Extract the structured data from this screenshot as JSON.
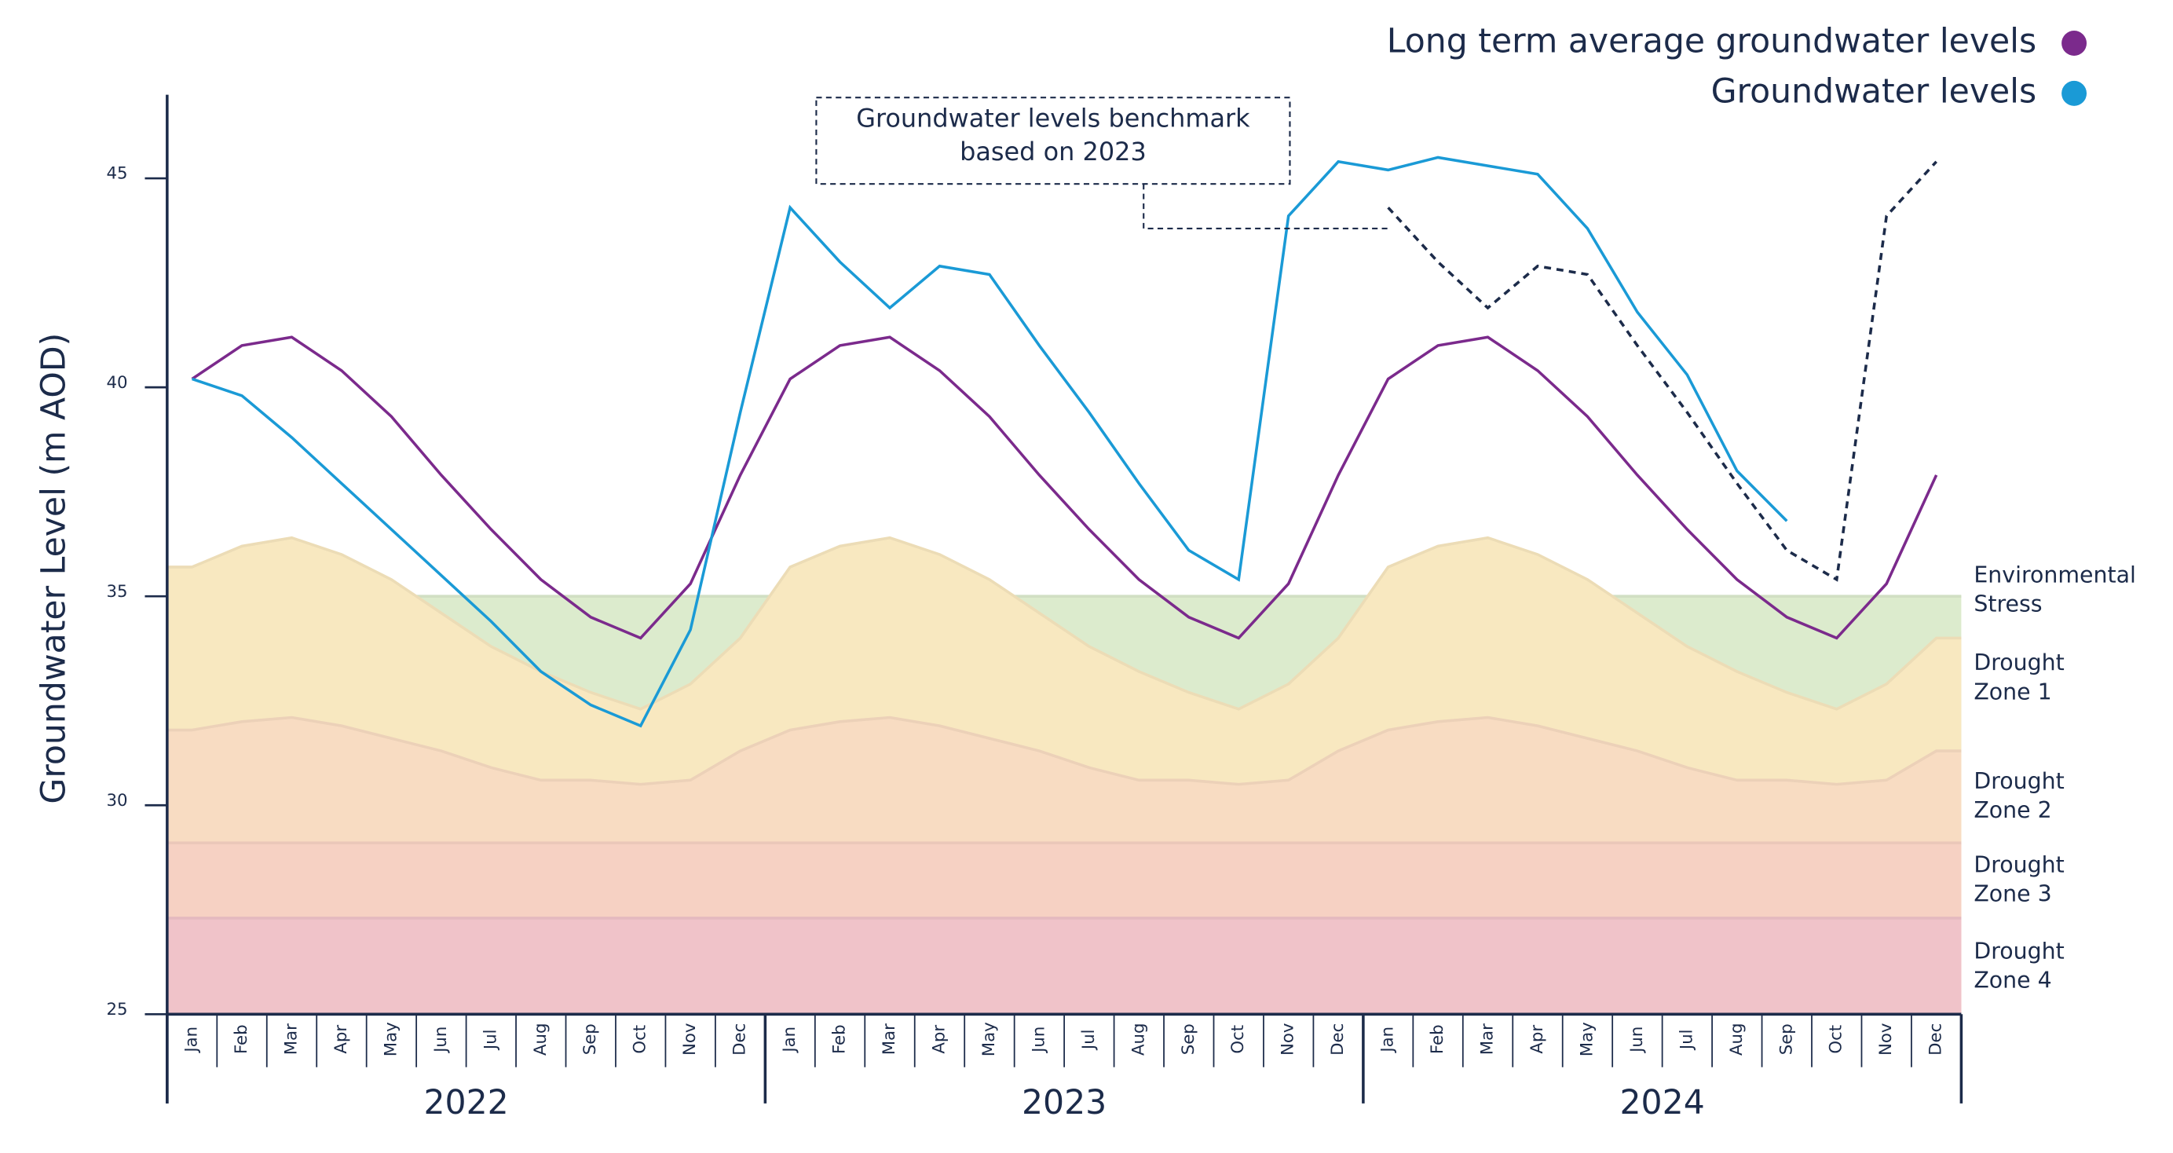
{
  "chart_data": {
    "type": "line",
    "y_label": "Groundwater Level (m AOD)",
    "categories": [
      "Jan",
      "Feb",
      "Mar",
      "Apr",
      "May",
      "Jun",
      "Jul",
      "Aug",
      "Sep",
      "Oct",
      "Nov",
      "Dec",
      "Jan",
      "Feb",
      "Mar",
      "Apr",
      "May",
      "Jun",
      "Jul",
      "Aug",
      "Sep",
      "Oct",
      "Nov",
      "Dec",
      "Jan",
      "Feb",
      "Mar",
      "Apr",
      "May",
      "Jun",
      "Jul",
      "Aug",
      "Sep",
      "Oct",
      "Nov",
      "Dec"
    ],
    "year_labels": [
      "2022",
      "2023",
      "2024"
    ],
    "ylim": [
      25,
      47
    ],
    "yticks": [
      25,
      30,
      35,
      40,
      45
    ],
    "legend": "top-right",
    "series": [
      {
        "name": "Long term average groundwater levels",
        "color": "#7b2a8c",
        "values": [
          40.2,
          41.0,
          41.2,
          40.4,
          39.3,
          37.9,
          36.6,
          35.4,
          34.5,
          34.0,
          35.3,
          37.9,
          40.2,
          41.0,
          41.2,
          40.4,
          39.3,
          37.9,
          36.6,
          35.4,
          34.5,
          34.0,
          35.3,
          37.9,
          40.2,
          41.0,
          41.2,
          40.4,
          39.3,
          37.9,
          36.6,
          35.4,
          34.5,
          34.0,
          35.3,
          37.9
        ]
      },
      {
        "name": "Groundwater levels",
        "color": "#1a9ad6",
        "values": [
          40.2,
          39.8,
          38.8,
          37.7,
          36.6,
          35.5,
          34.4,
          33.2,
          32.4,
          31.9,
          34.2,
          39.4,
          44.3,
          43.0,
          41.9,
          42.9,
          42.7,
          41.0,
          39.4,
          37.7,
          36.1,
          35.4,
          44.1,
          45.4,
          45.2,
          45.5,
          45.3,
          45.1,
          43.8,
          41.8,
          40.3,
          38.0,
          36.8,
          null,
          null,
          null
        ]
      }
    ],
    "benchmark": {
      "name": "Groundwater levels benchmark based on 2023",
      "color": "#1c2b4a",
      "values": [
        null,
        null,
        null,
        null,
        null,
        null,
        null,
        null,
        null,
        null,
        null,
        null,
        null,
        null,
        null,
        null,
        null,
        null,
        null,
        null,
        null,
        null,
        null,
        null,
        44.3,
        43.0,
        41.9,
        42.9,
        42.7,
        41.0,
        39.4,
        37.7,
        36.1,
        35.4,
        44.1,
        45.4
      ]
    },
    "zones": [
      {
        "name": "Environmental Stress",
        "color": "#dcebcd",
        "upper": [
          35,
          35,
          35,
          35,
          35,
          35,
          35,
          35,
          35,
          35,
          35,
          35,
          35,
          35,
          35,
          35,
          35,
          35,
          35,
          35,
          35,
          35,
          35,
          35,
          35,
          35,
          35,
          35,
          35,
          35,
          35,
          35,
          35,
          35,
          35,
          35
        ]
      },
      {
        "name": "Drought Zone 1",
        "color": "#f8e8c0",
        "upper": [
          35.7,
          36.2,
          36.4,
          36.0,
          35.4,
          34.6,
          33.8,
          33.2,
          32.7,
          32.3,
          32.9,
          34.0,
          35.7,
          36.2,
          36.4,
          36.0,
          35.4,
          34.6,
          33.8,
          33.2,
          32.7,
          32.3,
          32.9,
          34.0,
          35.7,
          36.2,
          36.4,
          36.0,
          35.4,
          34.6,
          33.8,
          33.2,
          32.7,
          32.3,
          32.9,
          34.0
        ]
      },
      {
        "name": "Drought Zone 2",
        "color": "#f8dcc2",
        "upper": [
          31.8,
          32.0,
          32.1,
          31.9,
          31.6,
          31.3,
          30.9,
          30.6,
          30.6,
          30.5,
          30.6,
          31.3,
          31.8,
          32.0,
          32.1,
          31.9,
          31.6,
          31.3,
          30.9,
          30.6,
          30.6,
          30.5,
          30.6,
          31.3,
          31.8,
          32.0,
          32.1,
          31.9,
          31.6,
          31.3,
          30.9,
          30.6,
          30.6,
          30.5,
          30.6,
          31.3
        ]
      },
      {
        "name": "Drought Zone 3",
        "color": "#f6d1c3",
        "upper": [
          29.1,
          29.1,
          29.1,
          29.1,
          29.1,
          29.1,
          29.1,
          29.1,
          29.1,
          29.1,
          29.1,
          29.1,
          29.1,
          29.1,
          29.1,
          29.1,
          29.1,
          29.1,
          29.1,
          29.1,
          29.1,
          29.1,
          29.1,
          29.1,
          29.1,
          29.1,
          29.1,
          29.1,
          29.1,
          29.1,
          29.1,
          29.1,
          29.1,
          29.1,
          29.1,
          29.1
        ]
      },
      {
        "name": "Drought Zone 4",
        "color": "#f0c3c9",
        "upper": [
          27.3,
          27.3,
          27.3,
          27.3,
          27.3,
          27.3,
          27.3,
          27.3,
          27.3,
          27.3,
          27.3,
          27.3,
          27.3,
          27.3,
          27.3,
          27.3,
          27.3,
          27.3,
          27.3,
          27.3,
          27.3,
          27.3,
          27.3,
          27.3,
          27.3,
          27.3,
          27.3,
          27.3,
          27.3,
          27.3,
          27.3,
          27.3,
          27.3,
          27.3,
          27.3,
          27.3
        ]
      }
    ]
  }
}
